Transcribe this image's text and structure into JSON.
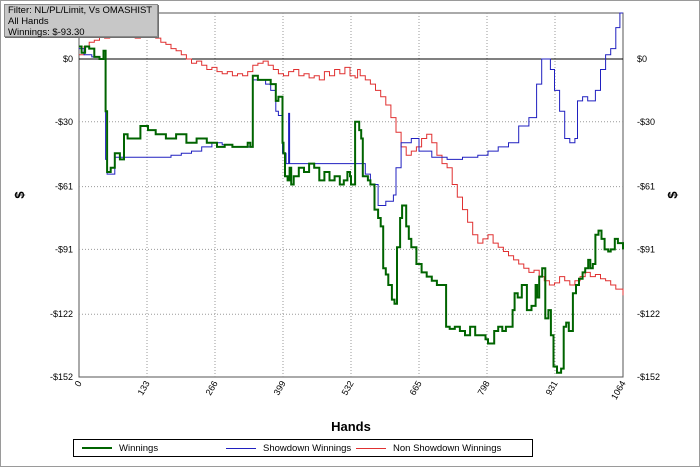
{
  "filter_box": {
    "line1": "Filter: NL/PL/Limit, Vs OMASHIST",
    "line2": "All Hands",
    "line3": "Winnings: $-93.30"
  },
  "colors": {
    "winnings": "#006400",
    "showdown": "#2020c0",
    "non_showdown": "#e03030",
    "grid": "#9a9a9a",
    "zero_line": "#000000"
  },
  "chart_data": {
    "type": "line",
    "title": "",
    "xlabel": "Hands",
    "ylabel": "$",
    "ylabel_right": "$",
    "xlim": [
      0,
      1064
    ],
    "ylim": [
      -152,
      22
    ],
    "x_ticks": [
      0,
      133,
      266,
      399,
      532,
      665,
      798,
      931,
      1064
    ],
    "x_tick_labels": [
      "0",
      "133",
      "266",
      "399",
      "532",
      "665",
      "798",
      "931",
      "1064"
    ],
    "y_ticks": [
      0,
      -30,
      -61,
      -91,
      -122,
      -152
    ],
    "y_tick_labels": [
      "$0",
      "-$30",
      "-$61",
      "-$91",
      "-$122",
      "-$152"
    ],
    "grid": true,
    "legend_position": "bottom",
    "series": [
      {
        "name": "Winnings",
        "color": "#006400",
        "points": [
          [
            0,
            6
          ],
          [
            5,
            3
          ],
          [
            12,
            6
          ],
          [
            20,
            5
          ],
          [
            30,
            1
          ],
          [
            40,
            0
          ],
          [
            48,
            4
          ],
          [
            52,
            -25
          ],
          [
            55,
            -54
          ],
          [
            62,
            -52
          ],
          [
            70,
            -45
          ],
          [
            80,
            -48
          ],
          [
            88,
            -36
          ],
          [
            95,
            -38
          ],
          [
            105,
            -38
          ],
          [
            120,
            -32
          ],
          [
            135,
            -34
          ],
          [
            150,
            -36
          ],
          [
            170,
            -38
          ],
          [
            190,
            -36
          ],
          [
            210,
            -40
          ],
          [
            230,
            -38
          ],
          [
            250,
            -40
          ],
          [
            270,
            -42
          ],
          [
            285,
            -41
          ],
          [
            300,
            -42
          ],
          [
            315,
            -42
          ],
          [
            325,
            -42
          ],
          [
            330,
            -40
          ],
          [
            335,
            -42
          ],
          [
            340,
            -8
          ],
          [
            350,
            -10
          ],
          [
            360,
            -10
          ],
          [
            375,
            -12
          ],
          [
            385,
            -20
          ],
          [
            390,
            -18
          ],
          [
            398,
            -40
          ],
          [
            400,
            -45
          ],
          [
            403,
            -56
          ],
          [
            408,
            -58
          ],
          [
            412,
            -52
          ],
          [
            415,
            -60
          ],
          [
            420,
            -56
          ],
          [
            430,
            -52
          ],
          [
            440,
            -54
          ],
          [
            450,
            -50
          ],
          [
            460,
            -52
          ],
          [
            470,
            -58
          ],
          [
            480,
            -54
          ],
          [
            490,
            -58
          ],
          [
            500,
            -56
          ],
          [
            510,
            -60
          ],
          [
            518,
            -58
          ],
          [
            525,
            -54
          ],
          [
            530,
            -56
          ],
          [
            532,
            -60
          ],
          [
            540,
            -30
          ],
          [
            548,
            -34
          ],
          [
            552,
            -38
          ],
          [
            555,
            -56
          ],
          [
            565,
            -58
          ],
          [
            570,
            -60
          ],
          [
            578,
            -72
          ],
          [
            585,
            -76
          ],
          [
            590,
            -80
          ],
          [
            595,
            -100
          ],
          [
            600,
            -103
          ],
          [
            605,
            -108
          ],
          [
            612,
            -115
          ],
          [
            617,
            -117
          ],
          [
            622,
            -90
          ],
          [
            628,
            -76
          ],
          [
            632,
            -70
          ],
          [
            640,
            -80
          ],
          [
            645,
            -86
          ],
          [
            650,
            -90
          ],
          [
            660,
            -98
          ],
          [
            670,
            -102
          ],
          [
            680,
            -104
          ],
          [
            690,
            -106
          ],
          [
            700,
            -108
          ],
          [
            712,
            -108
          ],
          [
            718,
            -128
          ],
          [
            725,
            -129
          ],
          [
            735,
            -128
          ],
          [
            745,
            -130
          ],
          [
            755,
            -132
          ],
          [
            765,
            -128
          ],
          [
            775,
            -132
          ],
          [
            785,
            -132
          ],
          [
            795,
            -134
          ],
          [
            800,
            -136
          ],
          [
            808,
            -136
          ],
          [
            812,
            -130
          ],
          [
            820,
            -128
          ],
          [
            828,
            -130
          ],
          [
            835,
            -128
          ],
          [
            842,
            -128
          ],
          [
            848,
            -120
          ],
          [
            852,
            -112
          ],
          [
            858,
            -114
          ],
          [
            866,
            -108
          ],
          [
            876,
            -120
          ],
          [
            885,
            -118
          ],
          [
            893,
            -108
          ],
          [
            896,
            -114
          ],
          [
            900,
            -104
          ],
          [
            906,
            -100
          ],
          [
            912,
            -124
          ],
          [
            918,
            -120
          ],
          [
            923,
            -132
          ],
          [
            928,
            -147
          ],
          [
            935,
            -150
          ],
          [
            943,
            -148
          ],
          [
            948,
            -128
          ],
          [
            953,
            -126
          ],
          [
            958,
            -130
          ],
          [
            966,
            -112
          ],
          [
            972,
            -108
          ],
          [
            978,
            -105
          ],
          [
            985,
            -102
          ],
          [
            990,
            -100
          ],
          [
            996,
            -96
          ],
          [
            1000,
            -100
          ],
          [
            1005,
            -98
          ],
          [
            1010,
            -84
          ],
          [
            1016,
            -82
          ],
          [
            1022,
            -86
          ],
          [
            1028,
            -91
          ],
          [
            1035,
            -92
          ],
          [
            1040,
            -91
          ],
          [
            1048,
            -86
          ],
          [
            1054,
            -88
          ],
          [
            1064,
            -91
          ]
        ]
      },
      {
        "name": "Showdown Winnings",
        "color": "#2020c0",
        "points": [
          [
            0,
            5
          ],
          [
            10,
            2
          ],
          [
            25,
            1
          ],
          [
            40,
            0
          ],
          [
            48,
            0
          ],
          [
            52,
            -48
          ],
          [
            55,
            -55
          ],
          [
            70,
            -47
          ],
          [
            100,
            -47
          ],
          [
            135,
            -47
          ],
          [
            160,
            -47
          ],
          [
            180,
            -46
          ],
          [
            200,
            -45
          ],
          [
            220,
            -44
          ],
          [
            240,
            -42
          ],
          [
            260,
            -40
          ],
          [
            280,
            -41
          ],
          [
            300,
            -42
          ],
          [
            320,
            -42
          ],
          [
            335,
            -42
          ],
          [
            340,
            -10
          ],
          [
            355,
            -10
          ],
          [
            365,
            -12
          ],
          [
            375,
            -15
          ],
          [
            385,
            -25
          ],
          [
            390,
            -27
          ],
          [
            398,
            -45
          ],
          [
            405,
            -50
          ],
          [
            410,
            -26
          ],
          [
            412,
            -50
          ],
          [
            420,
            -50
          ],
          [
            440,
            -50
          ],
          [
            460,
            -50
          ],
          [
            480,
            -50
          ],
          [
            500,
            -50
          ],
          [
            520,
            -50
          ],
          [
            540,
            -50
          ],
          [
            560,
            -55
          ],
          [
            570,
            -60
          ],
          [
            585,
            -70
          ],
          [
            600,
            -68
          ],
          [
            615,
            -65
          ],
          [
            620,
            -52
          ],
          [
            630,
            -40
          ],
          [
            650,
            -38
          ],
          [
            665,
            -44
          ],
          [
            690,
            -47
          ],
          [
            720,
            -48
          ],
          [
            750,
            -47
          ],
          [
            780,
            -46
          ],
          [
            800,
            -44
          ],
          [
            820,
            -42
          ],
          [
            840,
            -40
          ],
          [
            860,
            -32
          ],
          [
            880,
            -28
          ],
          [
            895,
            -12
          ],
          [
            905,
            0
          ],
          [
            910,
            0
          ],
          [
            922,
            -5
          ],
          [
            930,
            -15
          ],
          [
            940,
            -25
          ],
          [
            950,
            -38
          ],
          [
            960,
            -40
          ],
          [
            970,
            -38
          ],
          [
            975,
            -20
          ],
          [
            985,
            -18
          ],
          [
            995,
            -20
          ],
          [
            1010,
            -15
          ],
          [
            1020,
            -5
          ],
          [
            1030,
            2
          ],
          [
            1040,
            5
          ],
          [
            1050,
            15
          ],
          [
            1058,
            22
          ],
          [
            1064,
            22
          ]
        ]
      },
      {
        "name": "Non Showdown Winnings",
        "color": "#e03030",
        "points": [
          [
            0,
            2
          ],
          [
            10,
            6
          ],
          [
            20,
            8
          ],
          [
            30,
            9
          ],
          [
            40,
            12
          ],
          [
            50,
            10
          ],
          [
            60,
            11
          ],
          [
            70,
            12
          ],
          [
            80,
            13
          ],
          [
            90,
            11
          ],
          [
            100,
            14
          ],
          [
            110,
            10
          ],
          [
            120,
            12
          ],
          [
            130,
            14
          ],
          [
            140,
            12
          ],
          [
            150,
            10
          ],
          [
            160,
            8
          ],
          [
            170,
            7
          ],
          [
            180,
            5
          ],
          [
            190,
            4
          ],
          [
            200,
            2
          ],
          [
            210,
            0
          ],
          [
            220,
            -2
          ],
          [
            230,
            -1
          ],
          [
            240,
            -3
          ],
          [
            250,
            -5
          ],
          [
            260,
            -4
          ],
          [
            270,
            -6
          ],
          [
            280,
            -7
          ],
          [
            290,
            -6
          ],
          [
            300,
            -8
          ],
          [
            310,
            -7
          ],
          [
            320,
            -8
          ],
          [
            330,
            -6
          ],
          [
            340,
            -3
          ],
          [
            350,
            -2
          ],
          [
            360,
            -1
          ],
          [
            370,
            -3
          ],
          [
            380,
            -5
          ],
          [
            390,
            -7
          ],
          [
            400,
            -8
          ],
          [
            410,
            -6
          ],
          [
            420,
            -5
          ],
          [
            430,
            -8
          ],
          [
            440,
            -7
          ],
          [
            450,
            -9
          ],
          [
            460,
            -8
          ],
          [
            470,
            -10
          ],
          [
            480,
            -6
          ],
          [
            490,
            -8
          ],
          [
            500,
            -5
          ],
          [
            510,
            -7
          ],
          [
            520,
            -4
          ],
          [
            530,
            -8
          ],
          [
            540,
            -9
          ],
          [
            545,
            -5
          ],
          [
            550,
            -8
          ],
          [
            560,
            -10
          ],
          [
            570,
            -12
          ],
          [
            580,
            -15
          ],
          [
            590,
            -18
          ],
          [
            600,
            -22
          ],
          [
            610,
            -28
          ],
          [
            620,
            -35
          ],
          [
            630,
            -42
          ],
          [
            640,
            -46
          ],
          [
            650,
            -44
          ],
          [
            660,
            -42
          ],
          [
            670,
            -38
          ],
          [
            680,
            -36
          ],
          [
            690,
            -40
          ],
          [
            700,
            -46
          ],
          [
            710,
            -50
          ],
          [
            720,
            -52
          ],
          [
            730,
            -60
          ],
          [
            740,
            -66
          ],
          [
            750,
            -72
          ],
          [
            760,
            -78
          ],
          [
            770,
            -84
          ],
          [
            780,
            -88
          ],
          [
            790,
            -86
          ],
          [
            800,
            -84
          ],
          [
            810,
            -88
          ],
          [
            820,
            -90
          ],
          [
            830,
            -92
          ],
          [
            840,
            -94
          ],
          [
            850,
            -96
          ],
          [
            860,
            -98
          ],
          [
            870,
            -100
          ],
          [
            880,
            -102
          ],
          [
            890,
            -101
          ],
          [
            900,
            -104
          ],
          [
            910,
            -106
          ],
          [
            920,
            -108
          ],
          [
            930,
            -107
          ],
          [
            940,
            -104
          ],
          [
            950,
            -106
          ],
          [
            960,
            -108
          ],
          [
            970,
            -106
          ],
          [
            980,
            -104
          ],
          [
            990,
            -102
          ],
          [
            1000,
            -104
          ],
          [
            1010,
            -103
          ],
          [
            1020,
            -105
          ],
          [
            1030,
            -106
          ],
          [
            1040,
            -108
          ],
          [
            1050,
            -110
          ],
          [
            1064,
            -113
          ]
        ]
      }
    ]
  }
}
